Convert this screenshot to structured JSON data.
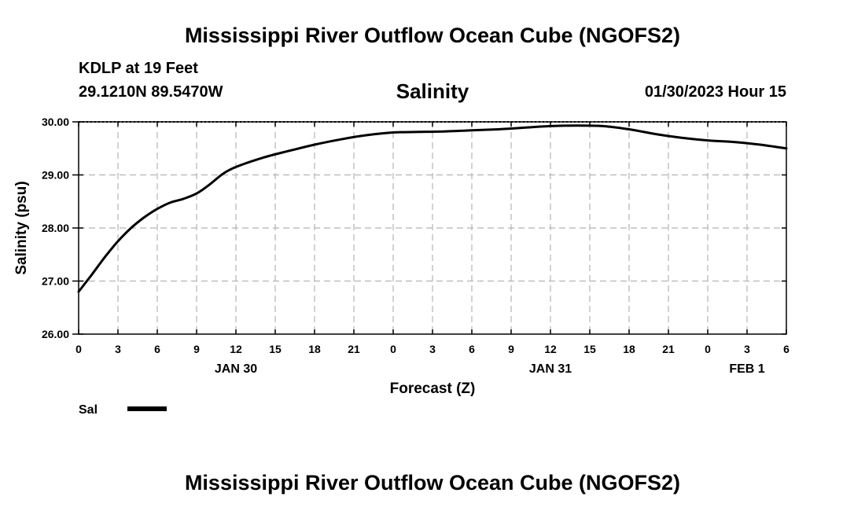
{
  "header": {
    "title": "Mississippi River Outflow Ocean Cube (NGOFS2)",
    "station": "KDLP at 19 Feet",
    "coords": "29.1210N  89.5470W",
    "chart_title": "Salinity",
    "datetime": "01/30/2023 Hour 15"
  },
  "footer": {
    "title": "Mississippi River Outflow Ocean Cube (NGOFS2)"
  },
  "colors": {
    "line": "#000000",
    "grid": "#b4b4b4",
    "background": "#ffffff"
  },
  "chart_data": {
    "type": "line",
    "title": "Salinity",
    "xlabel": "Forecast (Z)",
    "ylabel": "Salinity (psu)",
    "xlim": [
      0,
      54
    ],
    "ylim": [
      26.0,
      30.0
    ],
    "y_ticks": [
      {
        "value": 26.0,
        "label": "26.00"
      },
      {
        "value": 27.0,
        "label": "27.00"
      },
      {
        "value": 28.0,
        "label": "28.00"
      },
      {
        "value": 29.0,
        "label": "29.00"
      },
      {
        "value": 30.0,
        "label": "30.00"
      }
    ],
    "x_ticks": [
      {
        "value": 0,
        "label": "0"
      },
      {
        "value": 3,
        "label": "3"
      },
      {
        "value": 6,
        "label": "6"
      },
      {
        "value": 9,
        "label": "9"
      },
      {
        "value": 12,
        "label": "12"
      },
      {
        "value": 15,
        "label": "15"
      },
      {
        "value": 18,
        "label": "18"
      },
      {
        "value": 21,
        "label": "21"
      },
      {
        "value": 24,
        "label": "0"
      },
      {
        "value": 27,
        "label": "3"
      },
      {
        "value": 30,
        "label": "6"
      },
      {
        "value": 33,
        "label": "9"
      },
      {
        "value": 36,
        "label": "12"
      },
      {
        "value": 39,
        "label": "15"
      },
      {
        "value": 42,
        "label": "18"
      },
      {
        "value": 45,
        "label": "21"
      },
      {
        "value": 48,
        "label": "0"
      },
      {
        "value": 51,
        "label": "3"
      },
      {
        "value": 54,
        "label": "6"
      }
    ],
    "date_labels": [
      {
        "value": 12,
        "label": "JAN 30"
      },
      {
        "value": 36,
        "label": "JAN 31"
      },
      {
        "value": 51,
        "label": "FEB 1"
      }
    ],
    "grid": true,
    "legend": {
      "position": "bottom-left",
      "entries": [
        "Sal"
      ]
    },
    "series": [
      {
        "name": "Sal",
        "x": [
          0,
          1,
          2,
          3,
          4,
          5,
          6,
          7,
          8,
          9,
          10,
          11,
          12,
          14,
          16,
          18,
          20,
          22,
          24,
          26,
          28,
          30,
          32,
          34,
          36,
          38,
          40,
          42,
          44,
          46,
          48,
          50,
          52,
          54
        ],
        "y": [
          26.8,
          27.12,
          27.45,
          27.75,
          28.0,
          28.2,
          28.36,
          28.48,
          28.55,
          28.65,
          28.82,
          29.02,
          29.15,
          29.32,
          29.45,
          29.57,
          29.67,
          29.75,
          29.8,
          29.81,
          29.82,
          29.84,
          29.86,
          29.89,
          29.92,
          29.93,
          29.92,
          29.86,
          29.77,
          29.7,
          29.65,
          29.62,
          29.57,
          29.5
        ]
      }
    ]
  }
}
